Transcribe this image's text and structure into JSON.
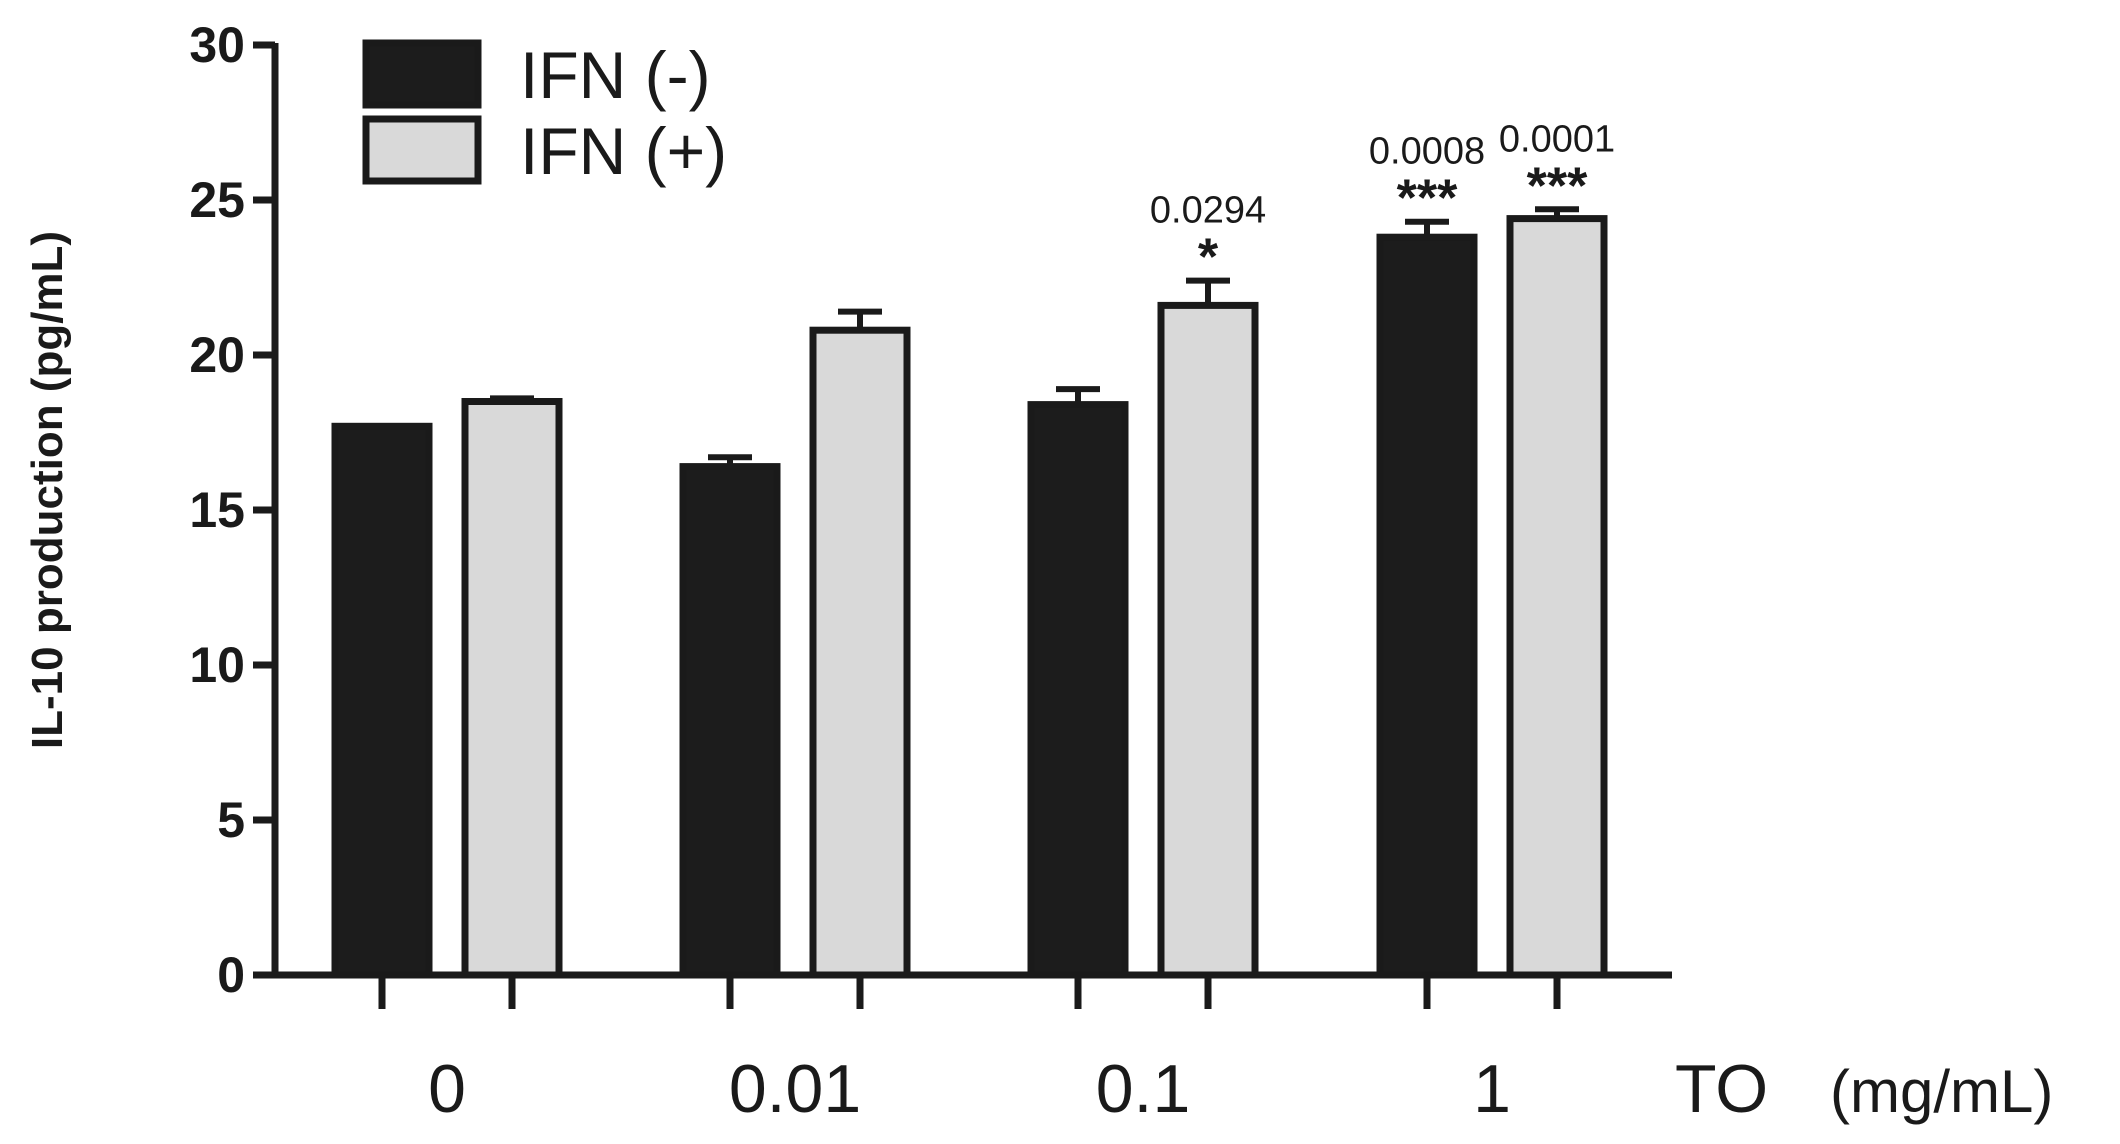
{
  "chart_data": {
    "type": "bar",
    "categories": [
      "0",
      "0.01",
      "0.1",
      "1"
    ],
    "series": [
      {
        "name": "IFN (-)",
        "values": [
          17.7,
          16.4,
          18.4,
          23.8
        ],
        "errors": [
          0.0,
          0.3,
          0.5,
          0.5
        ],
        "color": "#1c1c1c"
      },
      {
        "name": "IFN (+)",
        "values": [
          18.5,
          20.8,
          21.6,
          24.4
        ],
        "errors": [
          0.1,
          0.6,
          0.8,
          0.3
        ],
        "color": "#d9d9d9"
      }
    ],
    "annotations": [
      {
        "category": 2,
        "series": 1,
        "p_value": "0.0294",
        "stars": "*"
      },
      {
        "category": 3,
        "series": 0,
        "p_value": "0.0008",
        "stars": "***"
      },
      {
        "category": 3,
        "series": 1,
        "p_value": "0.0001",
        "stars": "***"
      }
    ],
    "y_ticks": [
      "0",
      "5",
      "10",
      "15",
      "20",
      "25",
      "30"
    ],
    "ylim": [
      0,
      30
    ],
    "ylabel": "IL-10 production   (pg/mL)",
    "xlabel_name": "TO",
    "xlabel_unit": "(mg/mL)",
    "legend_position": "top-left",
    "grid": false
  }
}
